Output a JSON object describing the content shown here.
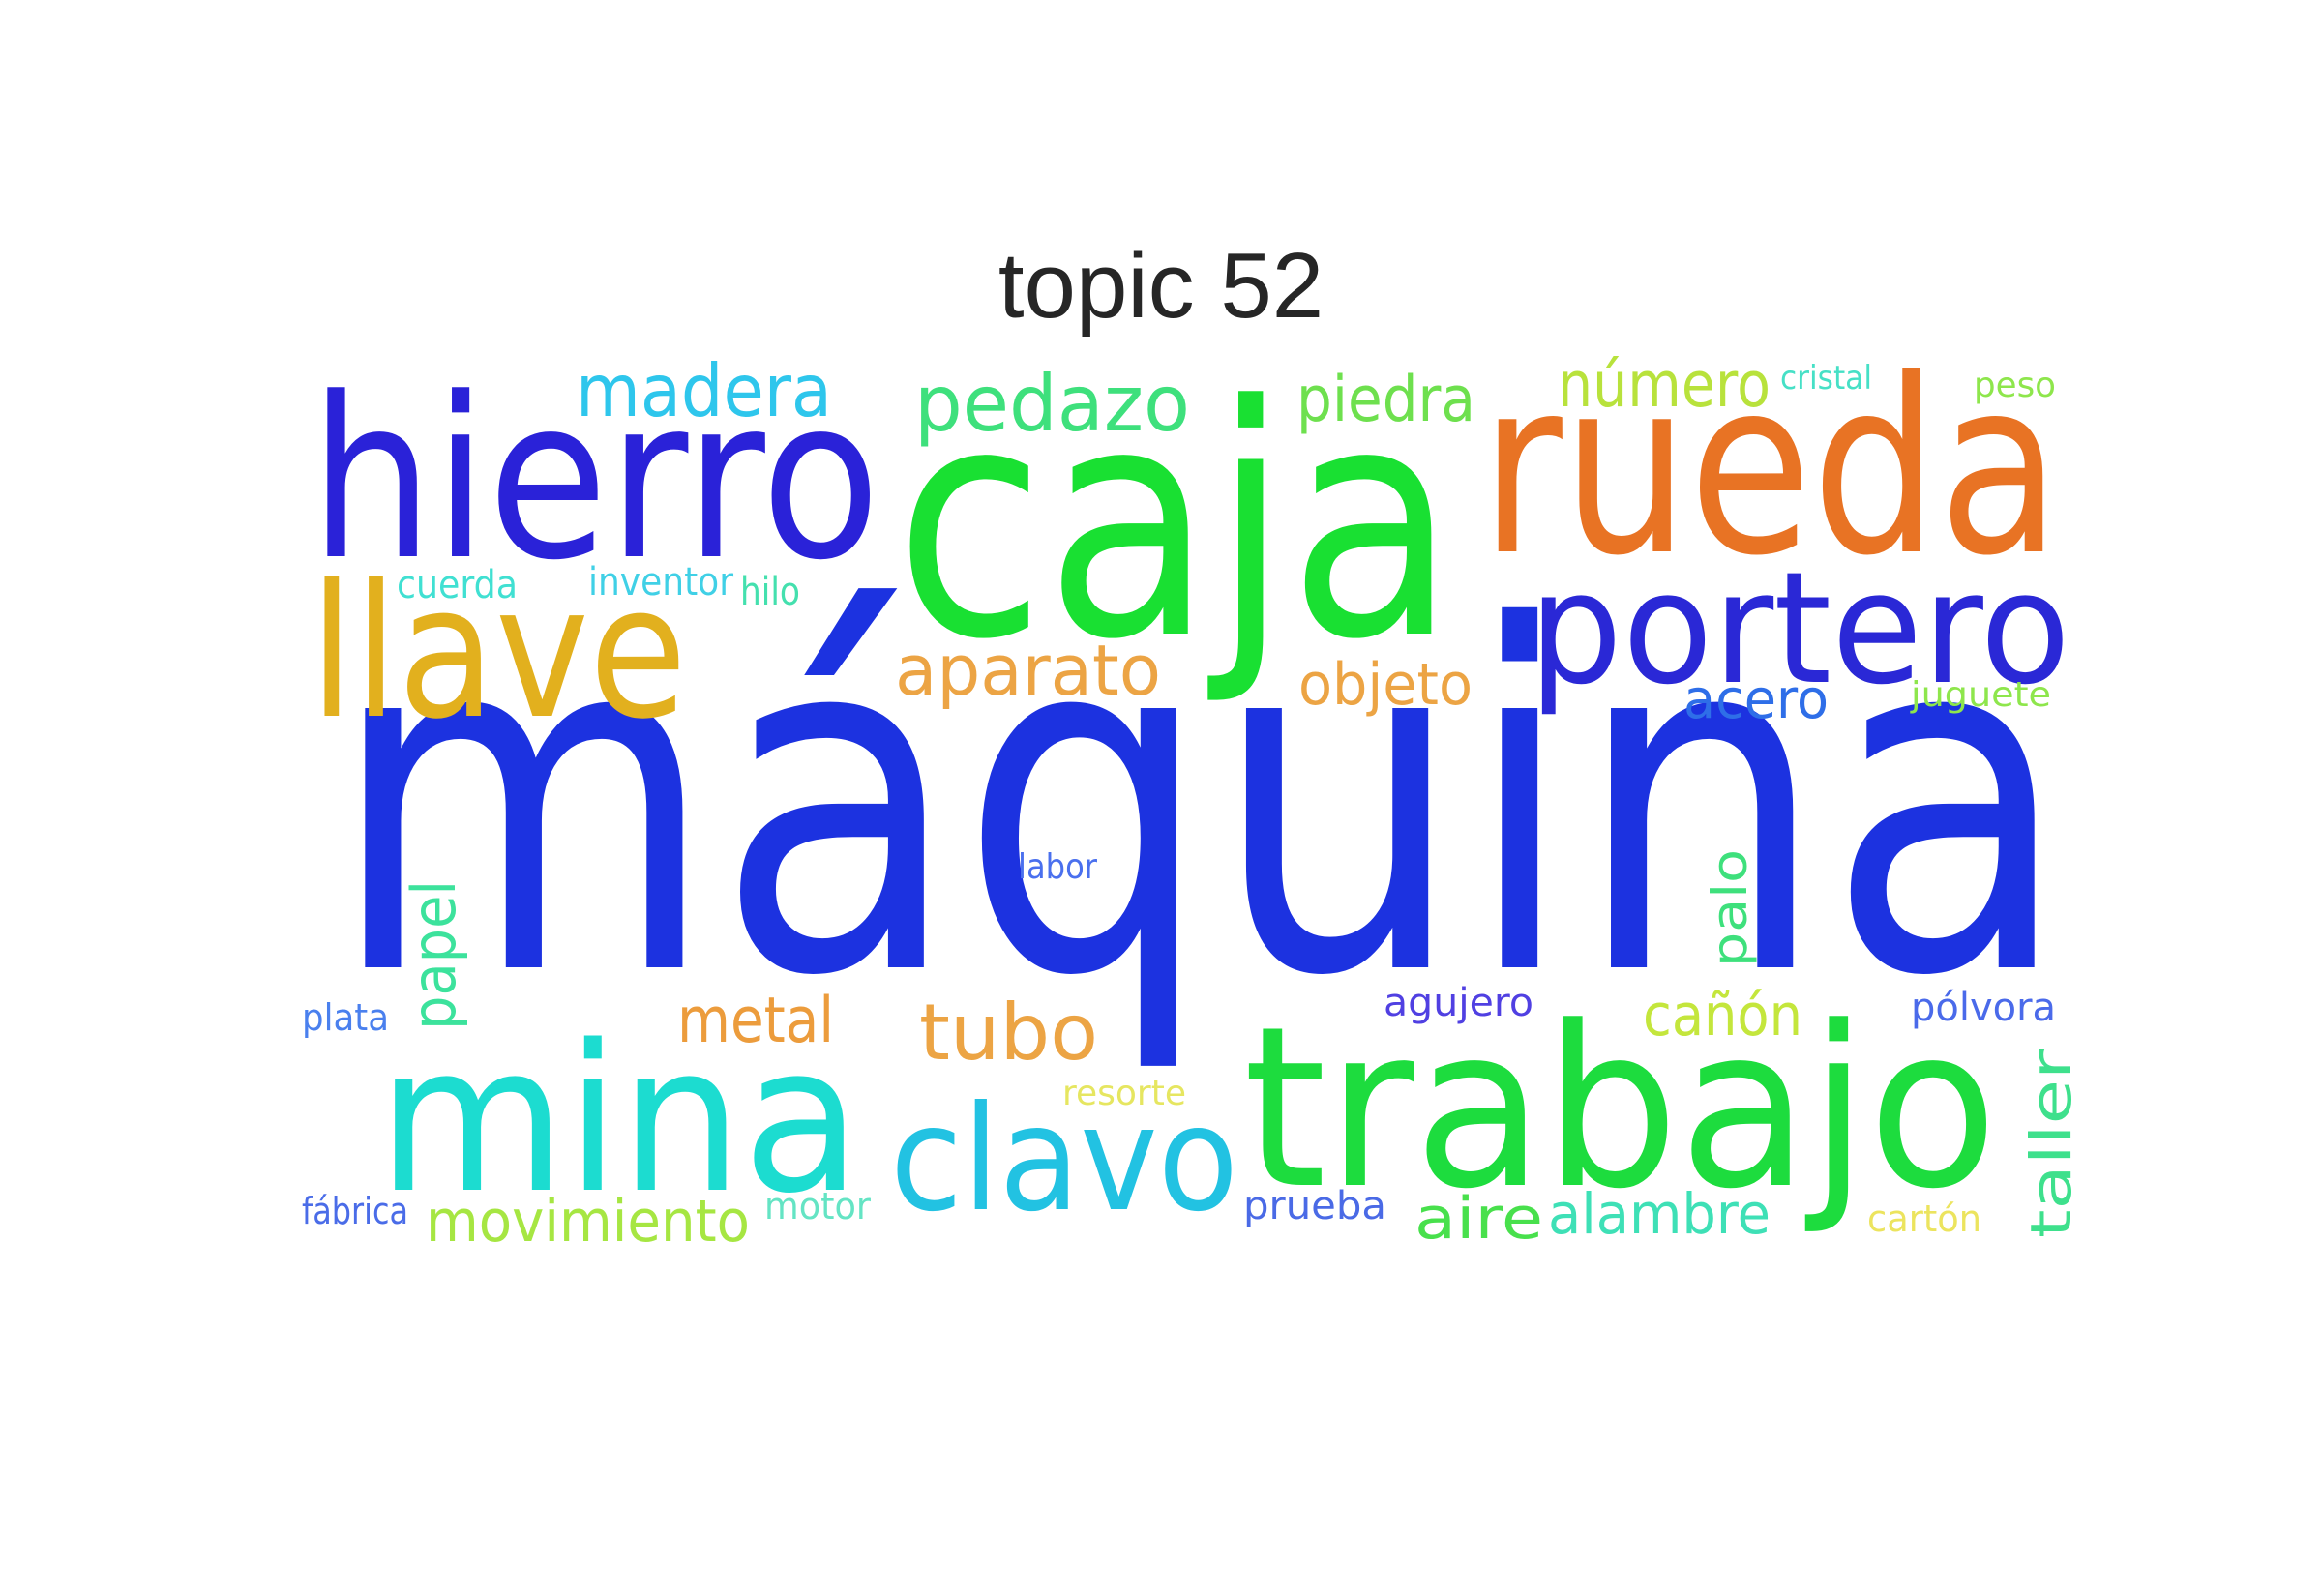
{
  "title": "topic 52",
  "words": [
    {
      "text": "máquina",
      "color": "#1c32e0"
    },
    {
      "text": "caja",
      "color": "#19e032"
    },
    {
      "text": "rueda",
      "color": "#e87324"
    },
    {
      "text": "hierro",
      "color": "#2a22d8"
    },
    {
      "text": "trabajo",
      "color": "#1ddc3e"
    },
    {
      "text": "llave",
      "color": "#e2b01e"
    },
    {
      "text": "mina",
      "color": "#1cdcd0"
    },
    {
      "text": "portero",
      "color": "#2a28d6"
    },
    {
      "text": "clavo",
      "color": "#22c2e2"
    },
    {
      "text": "madera",
      "color": "#2ec6ec"
    },
    {
      "text": "pedazo",
      "color": "#3ee07c"
    },
    {
      "text": "piedra",
      "color": "#6ee04e"
    },
    {
      "text": "número",
      "color": "#b8e23c"
    },
    {
      "text": "aparato",
      "color": "#eca444"
    },
    {
      "text": "objeto",
      "color": "#eca444"
    },
    {
      "text": "acero",
      "color": "#2e6ee8"
    },
    {
      "text": "tubo",
      "color": "#eca444"
    },
    {
      "text": "metal",
      "color": "#ec9c3c"
    },
    {
      "text": "papel",
      "color": "#3ce29c"
    },
    {
      "text": "palo",
      "color": "#3ee07c"
    },
    {
      "text": "cañón",
      "color": "#c4e63c"
    },
    {
      "text": "taller",
      "color": "#3ee08c"
    },
    {
      "text": "movimiento",
      "color": "#a6e642"
    },
    {
      "text": "aire",
      "color": "#48e04c"
    },
    {
      "text": "alambre",
      "color": "#3ee0b6"
    },
    {
      "text": "cuerda",
      "color": "#40e0d2"
    },
    {
      "text": "inventor",
      "color": "#40d0e6"
    },
    {
      "text": "hilo",
      "color": "#44e0ae"
    },
    {
      "text": "cristal",
      "color": "#46e0c6"
    },
    {
      "text": "peso",
      "color": "#8ee64c"
    },
    {
      "text": "juguete",
      "color": "#8ee64c"
    },
    {
      "text": "labor",
      "color": "#4a70ee"
    },
    {
      "text": "agujero",
      "color": "#5040e2"
    },
    {
      "text": "pólvora",
      "color": "#4a6aea"
    },
    {
      "text": "plata",
      "color": "#4a80ee"
    },
    {
      "text": "resorte",
      "color": "#e6e660"
    },
    {
      "text": "fábrica",
      "color": "#4a6ce8"
    },
    {
      "text": "motor",
      "color": "#64e4c4"
    },
    {
      "text": "prueba",
      "color": "#4a6ae6"
    },
    {
      "text": "cartón",
      "color": "#ece45e"
    }
  ]
}
